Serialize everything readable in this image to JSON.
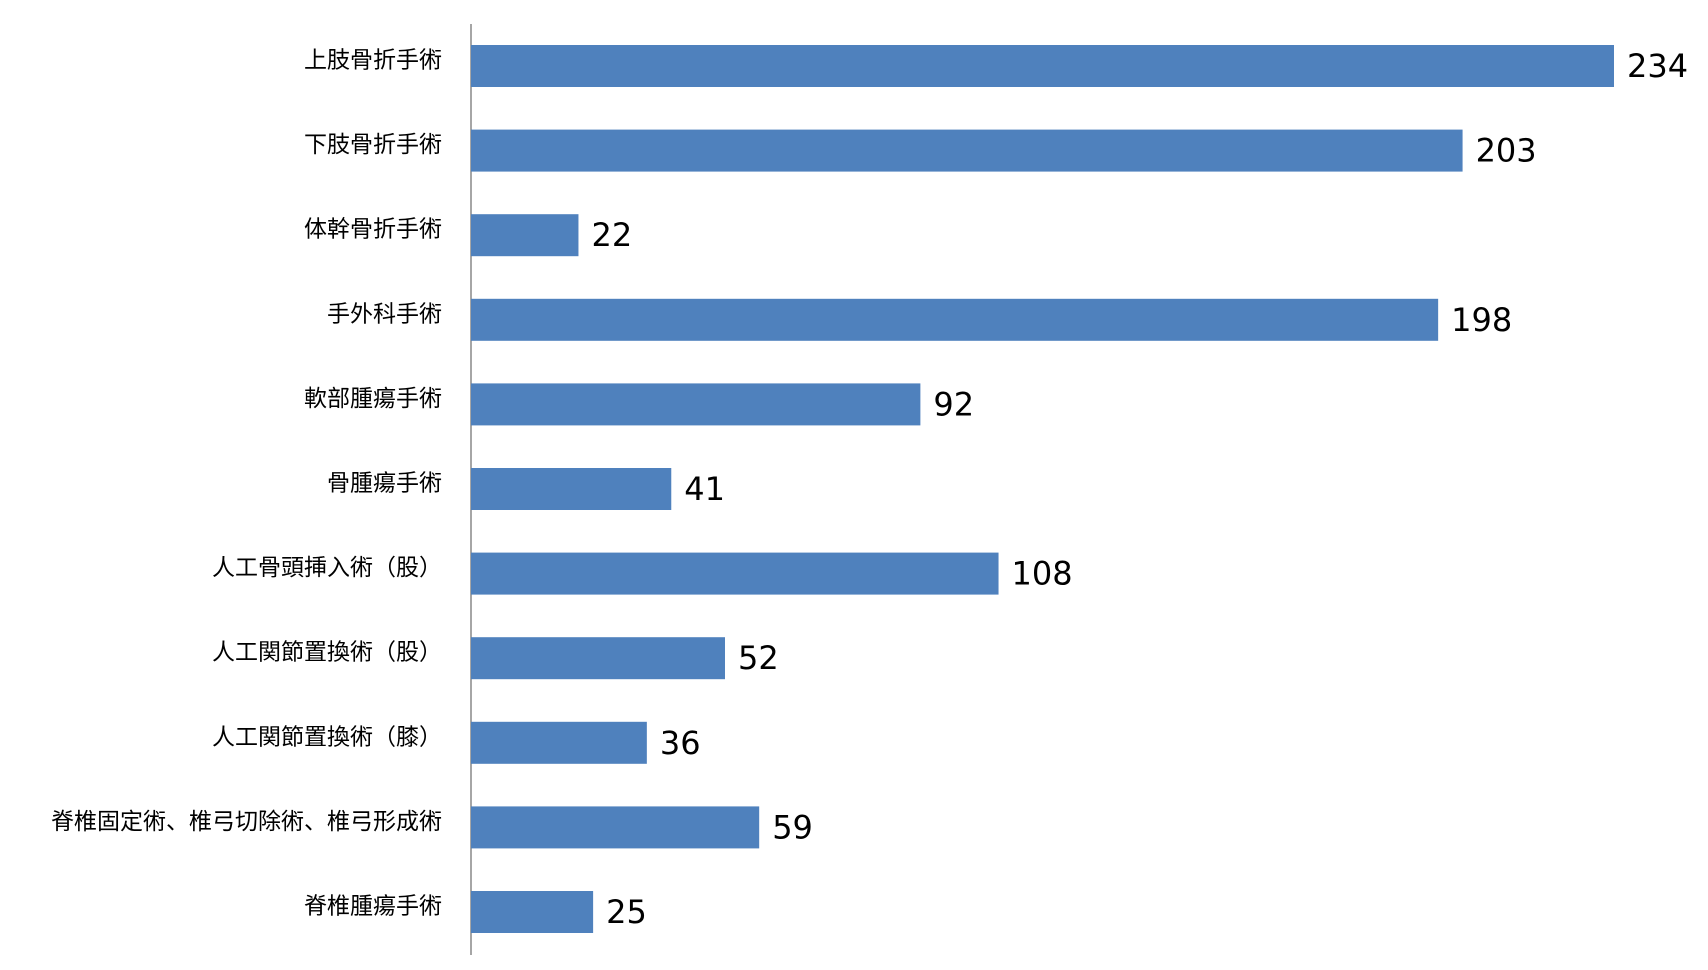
{
  "chart_data": {
    "type": "bar",
    "orientation": "horizontal",
    "categories": [
      "上肢骨折手術",
      "下肢骨折手術",
      "体幹骨折手術",
      "手外科手術",
      "軟部腫瘍手術",
      "骨腫瘍手術",
      "人工骨頭挿入術（股）",
      "人工関節置換術（股）",
      "人工関節置換術（膝）",
      "脊椎固定術、椎弓切除術、椎弓形成術",
      "脊椎腫瘍手術"
    ],
    "values": [
      234,
      203,
      22,
      198,
      92,
      41,
      108,
      52,
      36,
      59,
      25
    ],
    "color": "#4f81bd",
    "data_labels": true
  }
}
